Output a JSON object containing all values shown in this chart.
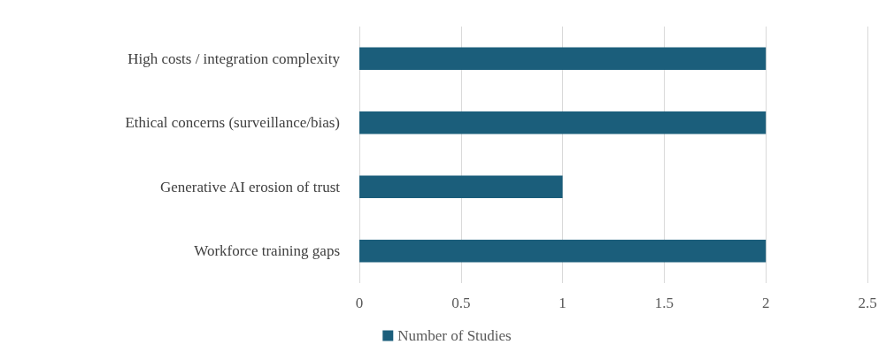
{
  "chart_data": {
    "type": "bar",
    "orientation": "horizontal",
    "categories": [
      "High costs / integration complexity",
      "Ethical concerns (surveillance/bias)",
      "Generative AI erosion of trust",
      "Workforce training gaps"
    ],
    "series": [
      {
        "name": "Number of Studies",
        "color": "#1b5e7b",
        "values": [
          2,
          2,
          1,
          2
        ]
      }
    ],
    "xlim": [
      0,
      2.5
    ],
    "xticks": [
      0,
      0.5,
      1,
      1.5,
      2,
      2.5
    ],
    "grid": "x",
    "legend": "bottom"
  }
}
